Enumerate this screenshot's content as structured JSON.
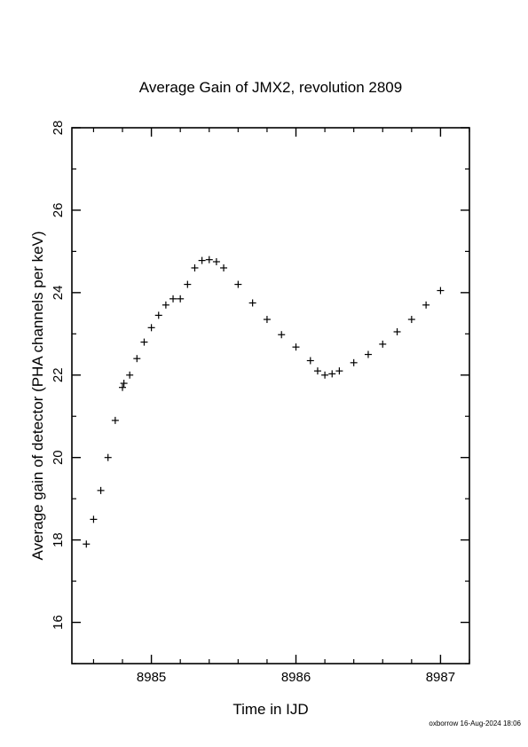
{
  "chart_data": {
    "type": "scatter",
    "title": "Average Gain of JMX2, revolution 2809",
    "xlabel": "Time in IJD",
    "ylabel": "Average gain of detector (PHA channels per keV)",
    "xlim": [
      8984.45,
      8987.2
    ],
    "ylim": [
      15,
      28
    ],
    "xticks": [
      8985,
      8986,
      8987
    ],
    "xtick_labels": [
      "8985",
      "8986",
      "8987"
    ],
    "yticks": [
      16,
      18,
      20,
      22,
      24,
      26,
      28
    ],
    "ytick_labels": [
      "16",
      "18",
      "20",
      "22",
      "24",
      26,
      "28"
    ],
    "marker": "+",
    "color": "#000000",
    "grid": false,
    "legend": "none",
    "series": [
      {
        "x": [
          8984.55,
          8984.6,
          8984.65,
          8984.7,
          8984.75,
          8984.8,
          8984.81,
          8984.85,
          8984.9,
          8984.95,
          8985.0,
          8985.05,
          8985.1,
          8985.15,
          8985.2,
          8985.25,
          8985.3,
          8985.35,
          8985.4,
          8985.45,
          8985.5,
          8985.6,
          8985.7,
          8985.8,
          8985.9,
          8986.0,
          8986.1,
          8986.15,
          8986.2,
          8986.25,
          8986.3,
          8986.4,
          8986.5,
          8986.6,
          8986.7,
          8986.8,
          8986.9,
          8987.0
        ],
        "y": [
          17.9,
          18.5,
          19.2,
          20.0,
          20.9,
          21.7,
          21.8,
          22.0,
          22.4,
          22.8,
          23.15,
          23.45,
          23.7,
          23.85,
          23.85,
          24.2,
          24.6,
          24.78,
          24.8,
          24.75,
          24.6,
          24.2,
          23.75,
          23.35,
          22.98,
          22.68,
          22.35,
          22.1,
          22.0,
          22.03,
          22.1,
          22.3,
          22.5,
          22.75,
          23.05,
          23.35,
          23.7,
          24.05
        ]
      }
    ]
  },
  "footer": {
    "stamp": "oxborrow 16-Aug-2024 18:06"
  }
}
